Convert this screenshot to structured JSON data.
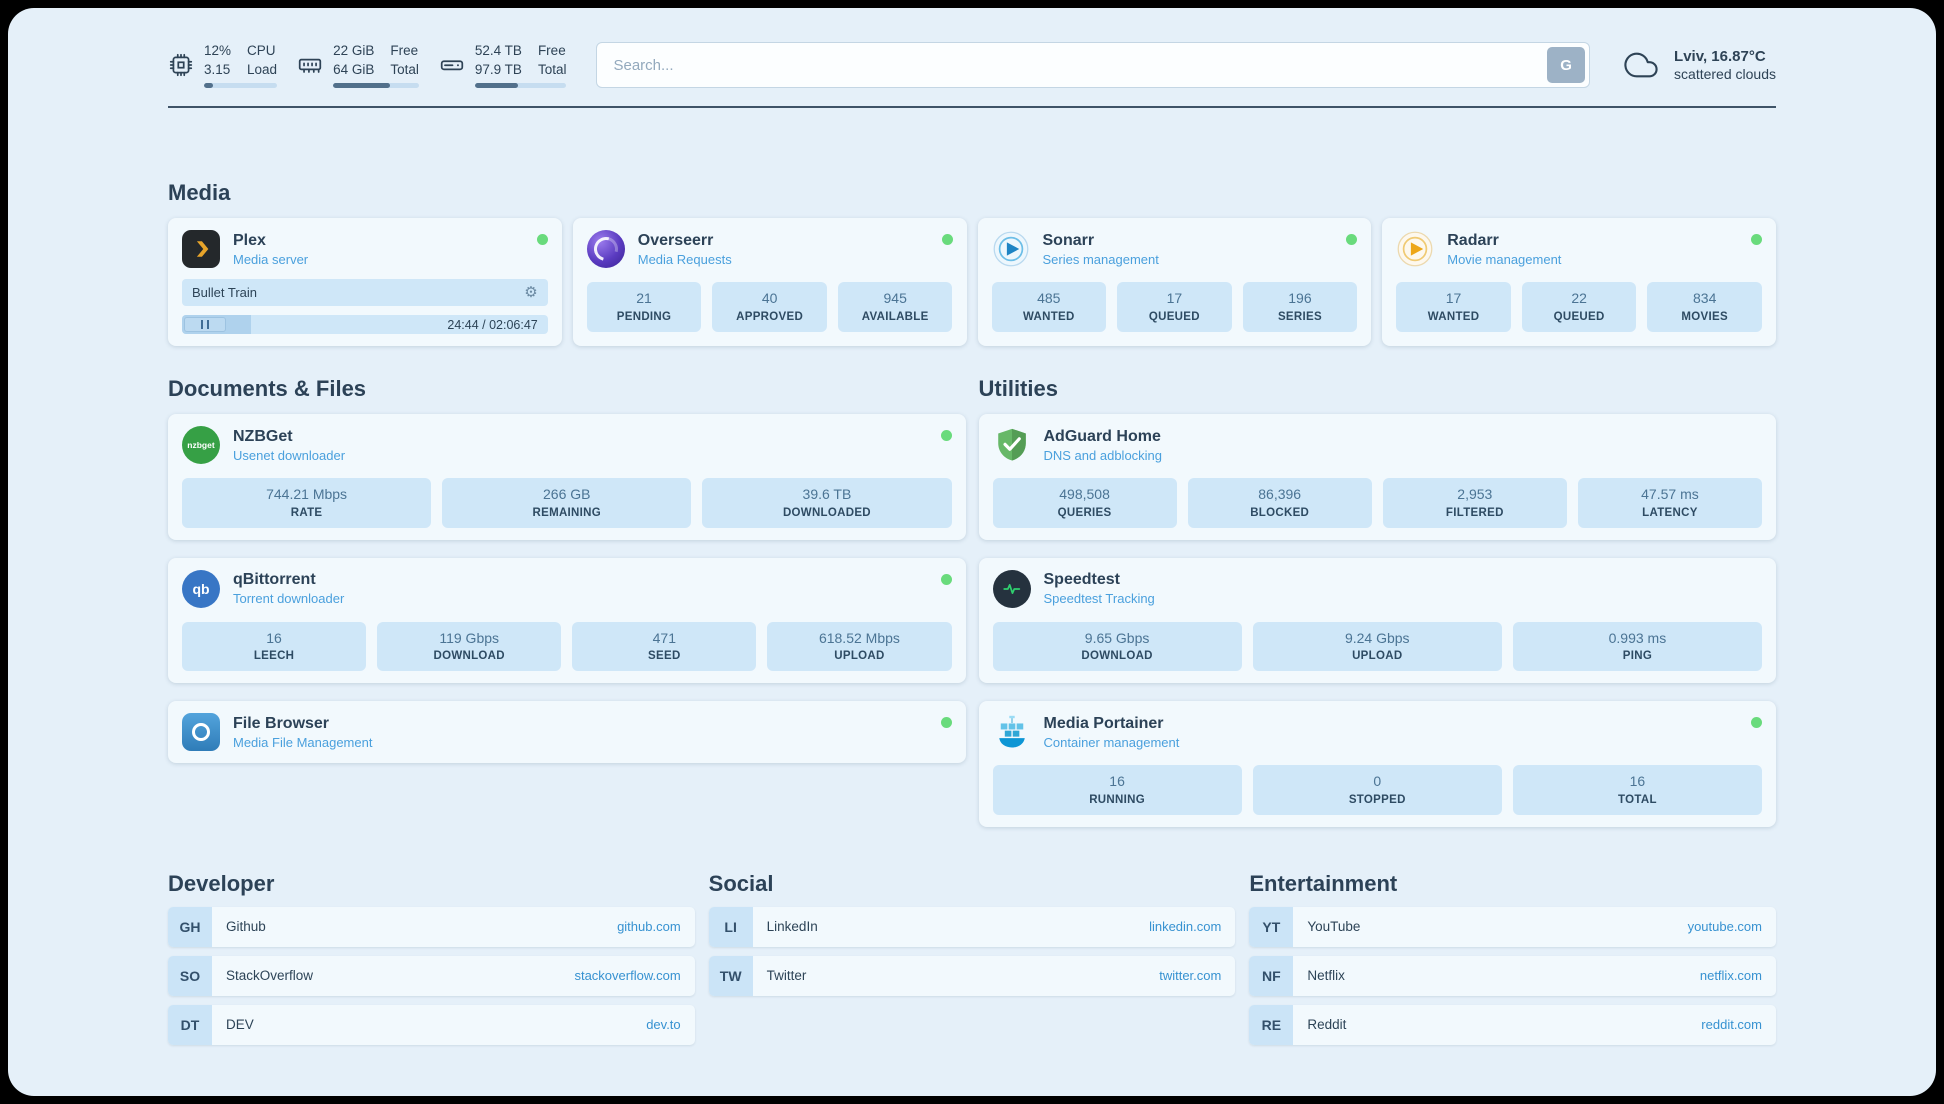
{
  "header": {
    "cpu": {
      "value_top": "12%",
      "value_bottom": "3.15",
      "label_top": "CPU",
      "label_bottom": "Load",
      "percent": 12
    },
    "ram": {
      "value_top": "22 GiB",
      "value_bottom": "64 GiB",
      "label_top": "Free",
      "label_bottom": "Total",
      "percent": 66
    },
    "disk": {
      "value_top": "52.4 TB",
      "value_bottom": "97.9 TB",
      "label_top": "Free",
      "label_bottom": "Total",
      "percent": 47
    },
    "search": {
      "placeholder": "Search...",
      "engine_button": "G"
    },
    "weather": {
      "location": "Lviv, 16.87°C",
      "condition": "scattered clouds"
    }
  },
  "icons": {
    "gear": "⚙",
    "nzbget_badge": "nzbget",
    "qbittorrent_badge": "qb"
  },
  "sections": {
    "media": {
      "title": "Media",
      "plex": {
        "name": "Plex",
        "subtitle": "Media server",
        "now_playing": "Bullet Train",
        "time": "24:44 / 02:06:47",
        "progress_percent": 19
      },
      "overseerr": {
        "name": "Overseerr",
        "subtitle": "Media Requests",
        "stats": [
          {
            "value": "21",
            "label": "PENDING"
          },
          {
            "value": "40",
            "label": "APPROVED"
          },
          {
            "value": "945",
            "label": "AVAILABLE"
          }
        ]
      },
      "sonarr": {
        "name": "Sonarr",
        "subtitle": "Series management",
        "stats": [
          {
            "value": "485",
            "label": "WANTED"
          },
          {
            "value": "17",
            "label": "QUEUED"
          },
          {
            "value": "196",
            "label": "SERIES"
          }
        ]
      },
      "radarr": {
        "name": "Radarr",
        "subtitle": "Movie management",
        "stats": [
          {
            "value": "17",
            "label": "WANTED"
          },
          {
            "value": "22",
            "label": "QUEUED"
          },
          {
            "value": "834",
            "label": "MOVIES"
          }
        ]
      }
    },
    "documents": {
      "title": "Documents & Files",
      "nzbget": {
        "name": "NZBGet",
        "subtitle": "Usenet downloader",
        "stats": [
          {
            "value": "744.21 Mbps",
            "label": "RATE"
          },
          {
            "value": "266 GB",
            "label": "REMAINING"
          },
          {
            "value": "39.6 TB",
            "label": "DOWNLOADED"
          }
        ]
      },
      "qbittorrent": {
        "name": "qBittorrent",
        "subtitle": "Torrent downloader",
        "stats": [
          {
            "value": "16",
            "label": "LEECH"
          },
          {
            "value": "119 Gbps",
            "label": "DOWNLOAD"
          },
          {
            "value": "471",
            "label": "SEED"
          },
          {
            "value": "618.52 Mbps",
            "label": "UPLOAD"
          }
        ]
      },
      "filebrowser": {
        "name": "File Browser",
        "subtitle": "Media File Management"
      }
    },
    "utilities": {
      "title": "Utilities",
      "adguard": {
        "name": "AdGuard Home",
        "subtitle": "DNS and adblocking",
        "stats": [
          {
            "value": "498,508",
            "label": "QUERIES"
          },
          {
            "value": "86,396",
            "label": "BLOCKED"
          },
          {
            "value": "2,953",
            "label": "FILTERED"
          },
          {
            "value": "47.57 ms",
            "label": "LATENCY"
          }
        ]
      },
      "speedtest": {
        "name": "Speedtest",
        "subtitle": "Speedtest Tracking",
        "stats": [
          {
            "value": "9.65 Gbps",
            "label": "DOWNLOAD"
          },
          {
            "value": "9.24 Gbps",
            "label": "UPLOAD"
          },
          {
            "value": "0.993 ms",
            "label": "PING"
          }
        ]
      },
      "portainer": {
        "name": "Media Portainer",
        "subtitle": "Container management",
        "stats": [
          {
            "value": "16",
            "label": "RUNNING"
          },
          {
            "value": "0",
            "label": "STOPPED"
          },
          {
            "value": "16",
            "label": "TOTAL"
          }
        ]
      }
    },
    "bookmarks": {
      "developer": {
        "title": "Developer",
        "items": [
          {
            "abbr": "GH",
            "name": "Github",
            "url": "github.com"
          },
          {
            "abbr": "SO",
            "name": "StackOverflow",
            "url": "stackoverflow.com"
          },
          {
            "abbr": "DT",
            "name": "DEV",
            "url": "dev.to"
          }
        ]
      },
      "social": {
        "title": "Social",
        "items": [
          {
            "abbr": "LI",
            "name": "LinkedIn",
            "url": "linkedin.com"
          },
          {
            "abbr": "TW",
            "name": "Twitter",
            "url": "twitter.com"
          }
        ]
      },
      "entertainment": {
        "title": "Entertainment",
        "items": [
          {
            "abbr": "YT",
            "name": "YouTube",
            "url": "youtube.com"
          },
          {
            "abbr": "NF",
            "name": "Netflix",
            "url": "netflix.com"
          },
          {
            "abbr": "RE",
            "name": "Reddit",
            "url": "reddit.com"
          }
        ]
      }
    }
  },
  "colors": {
    "accent_blue": "#4aa0dd",
    "link_blue": "#3792d1",
    "status_green": "#69db7c",
    "tile_bg": "#cfe7f8"
  }
}
